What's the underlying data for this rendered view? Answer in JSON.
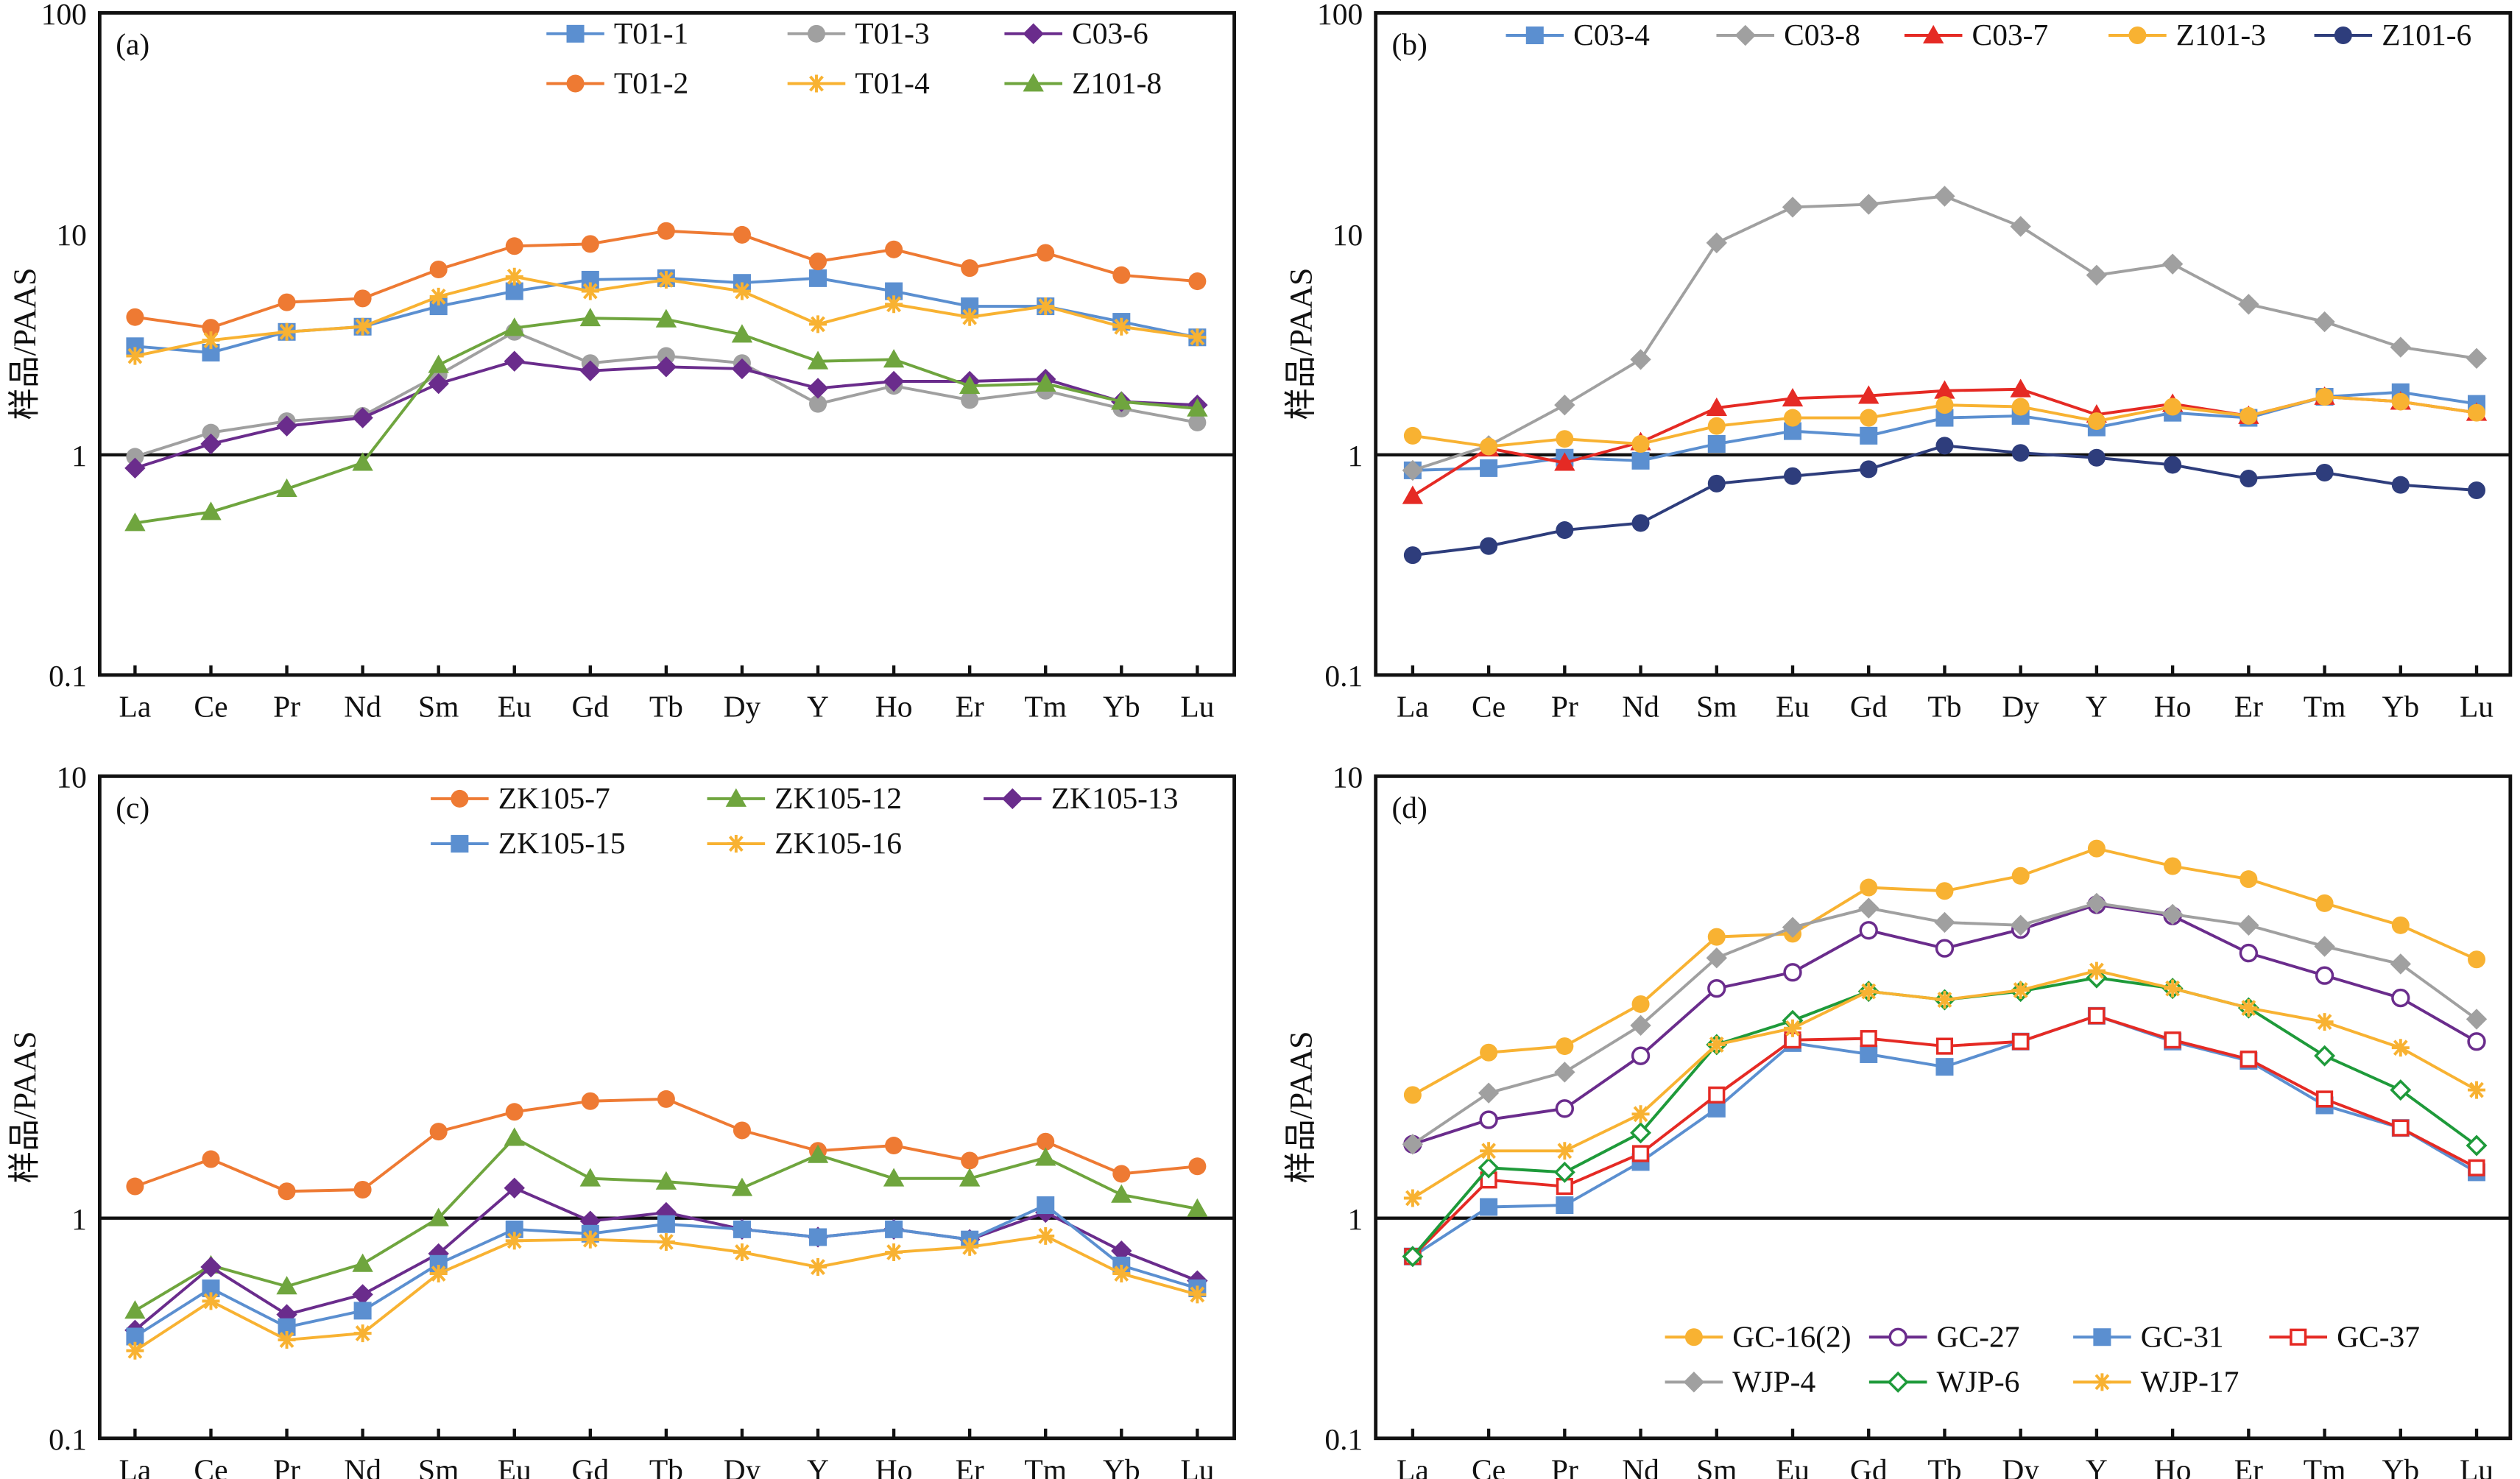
{
  "chart_data": [
    {
      "panel_label": "(a)",
      "type": "line",
      "yscale": "log",
      "ylim": [
        0.1,
        100
      ],
      "yticks": [
        "0.1",
        "1",
        "10",
        "100"
      ],
      "ylabel": "样品/PAAS",
      "reference_line": 1,
      "categories": [
        "La",
        "Ce",
        "Pr",
        "Nd",
        "Sm",
        "Eu",
        "Gd",
        "Tb",
        "Dy",
        "Y",
        "Ho",
        "Er",
        "Tm",
        "Yb",
        "Lu"
      ],
      "legend": "top-right",
      "legend_columns": 3,
      "series": [
        {
          "name": "T01-1",
          "color": "#5B8FD0",
          "marker": "square",
          "values": [
            3.1,
            2.9,
            3.6,
            3.8,
            4.7,
            5.5,
            6.2,
            6.3,
            6.0,
            6.3,
            5.5,
            4.7,
            4.7,
            4.0,
            3.4
          ]
        },
        {
          "name": "T01-3",
          "color": "#A0A0A0",
          "marker": "circle",
          "values": [
            0.98,
            1.26,
            1.42,
            1.5,
            2.3,
            3.6,
            2.6,
            2.8,
            2.6,
            1.7,
            2.05,
            1.77,
            1.95,
            1.62,
            1.4
          ]
        },
        {
          "name": "C03-6",
          "color": "#6A2C8C",
          "marker": "diamond",
          "values": [
            0.87,
            1.12,
            1.35,
            1.47,
            2.1,
            2.65,
            2.4,
            2.5,
            2.45,
            2.0,
            2.15,
            2.15,
            2.2,
            1.74,
            1.68
          ]
        },
        {
          "name": "T01-2",
          "color": "#EE7A33",
          "marker": "circle",
          "values": [
            4.2,
            3.76,
            4.9,
            5.1,
            6.9,
            8.8,
            9.0,
            10.3,
            9.9,
            7.5,
            8.5,
            7.0,
            8.2,
            6.5,
            6.1
          ]
        },
        {
          "name": "T01-4",
          "color": "#F8B232",
          "marker": "asterisk",
          "values": [
            2.8,
            3.3,
            3.6,
            3.8,
            5.2,
            6.4,
            5.5,
            6.2,
            5.5,
            3.9,
            4.8,
            4.2,
            4.7,
            3.8,
            3.4
          ]
        },
        {
          "name": "Z101-8",
          "color": "#6FA53E",
          "marker": "triangle",
          "values": [
            0.49,
            0.55,
            0.7,
            0.92,
            2.55,
            3.75,
            4.15,
            4.1,
            3.5,
            2.65,
            2.7,
            2.05,
            2.1,
            1.74,
            1.62
          ]
        }
      ]
    },
    {
      "panel_label": "(b)",
      "type": "line",
      "yscale": "log",
      "ylim": [
        0.1,
        100
      ],
      "yticks": [
        "0.1",
        "1",
        "10",
        "100"
      ],
      "ylabel": "样品/PAAS",
      "reference_line": 1,
      "categories": [
        "La",
        "Ce",
        "Pr",
        "Nd",
        "Sm",
        "Eu",
        "Gd",
        "Tb",
        "Dy",
        "Y",
        "Ho",
        "Er",
        "Tm",
        "Yb",
        "Lu"
      ],
      "legend": "top",
      "legend_columns": 5,
      "series": [
        {
          "name": "C03-4",
          "color": "#5B8FD0",
          "marker": "square",
          "values": [
            0.85,
            0.87,
            0.97,
            0.94,
            1.12,
            1.28,
            1.22,
            1.47,
            1.5,
            1.33,
            1.55,
            1.47,
            1.83,
            1.92,
            1.7
          ]
        },
        {
          "name": "C03-8",
          "color": "#A0A0A0",
          "marker": "diamond",
          "values": [
            0.85,
            1.1,
            1.68,
            2.7,
            9.1,
            13.2,
            13.6,
            14.8,
            10.8,
            6.5,
            7.3,
            4.8,
            4.0,
            3.07,
            2.73
          ]
        },
        {
          "name": "C03-7",
          "color": "#E52A24",
          "marker": "triangle",
          "values": [
            0.65,
            1.07,
            0.92,
            1.14,
            1.63,
            1.8,
            1.85,
            1.95,
            1.98,
            1.52,
            1.7,
            1.5,
            1.83,
            1.74,
            1.55
          ]
        },
        {
          "name": "Z101-3",
          "color": "#F8B232",
          "marker": "circle",
          "values": [
            1.22,
            1.09,
            1.18,
            1.12,
            1.35,
            1.47,
            1.47,
            1.68,
            1.65,
            1.42,
            1.65,
            1.5,
            1.83,
            1.74,
            1.55
          ]
        },
        {
          "name": "Z101-6",
          "color": "#2E3D7C",
          "marker": "circle",
          "values": [
            0.35,
            0.385,
            0.455,
            0.49,
            0.74,
            0.8,
            0.86,
            1.1,
            1.02,
            0.97,
            0.9,
            0.78,
            0.83,
            0.73,
            0.69
          ]
        }
      ]
    },
    {
      "panel_label": "(c)",
      "type": "line",
      "yscale": "log",
      "ylim": [
        0.1,
        10
      ],
      "yticks": [
        "0.1",
        "1",
        "10"
      ],
      "ylabel": "样品/PAAS",
      "reference_line": 1,
      "categories": [
        "La",
        "Ce",
        "Pr",
        "Nd",
        "Sm",
        "Eu",
        "Gd",
        "Tb",
        "Dy",
        "Y",
        "Ho",
        "Er",
        "Tm",
        "Yb",
        "Lu"
      ],
      "legend": "top-right",
      "legend_columns": 3,
      "series": [
        {
          "name": "ZK105-7",
          "color": "#EE7A33",
          "marker": "circle",
          "values": [
            1.18,
            1.36,
            1.15,
            1.16,
            1.57,
            1.74,
            1.84,
            1.86,
            1.58,
            1.42,
            1.46,
            1.35,
            1.49,
            1.26,
            1.31
          ]
        },
        {
          "name": "ZK105-12",
          "color": "#6FA53E",
          "marker": "triangle",
          "values": [
            0.38,
            0.61,
            0.49,
            0.62,
            1.0,
            1.52,
            1.23,
            1.21,
            1.17,
            1.39,
            1.23,
            1.23,
            1.37,
            1.13,
            1.05
          ]
        },
        {
          "name": "ZK105-13",
          "color": "#6A2C8C",
          "marker": "diamond",
          "values": [
            0.31,
            0.6,
            0.365,
            0.45,
            0.69,
            1.17,
            0.97,
            1.03,
            0.89,
            0.82,
            0.89,
            0.8,
            1.03,
            0.71,
            0.52
          ]
        },
        {
          "name": "ZK105-15",
          "color": "#5B8FD0",
          "marker": "square",
          "values": [
            0.29,
            0.48,
            0.32,
            0.38,
            0.62,
            0.89,
            0.85,
            0.94,
            0.89,
            0.82,
            0.89,
            0.8,
            1.07,
            0.61,
            0.48
          ]
        },
        {
          "name": "ZK105-16",
          "color": "#F8B232",
          "marker": "asterisk",
          "values": [
            0.25,
            0.42,
            0.28,
            0.3,
            0.56,
            0.79,
            0.8,
            0.78,
            0.7,
            0.6,
            0.7,
            0.74,
            0.83,
            0.56,
            0.45
          ]
        }
      ]
    },
    {
      "panel_label": "(d)",
      "type": "line",
      "yscale": "log",
      "ylim": [
        0.1,
        10
      ],
      "yticks": [
        "0.1",
        "1",
        "10"
      ],
      "ylabel": "样品/PAAS",
      "reference_line": 1,
      "categories": [
        "La",
        "Ce",
        "Pr",
        "Nd",
        "Sm",
        "Eu",
        "Gd",
        "Tb",
        "Dy",
        "Y",
        "Ho",
        "Er",
        "Tm",
        "Yb",
        "Lu"
      ],
      "legend": "bottom-right",
      "legend_columns": 4,
      "series": [
        {
          "name": "GC-16(2)",
          "color": "#F8B232",
          "marker": "circle",
          "values": [
            1.9,
            2.37,
            2.45,
            3.05,
            4.33,
            4.4,
            5.6,
            5.5,
            5.95,
            6.86,
            6.26,
            5.85,
            5.16,
            4.6,
            3.85
          ]
        },
        {
          "name": "GC-27",
          "color": "#6A2C8C",
          "marker": "open-circle",
          "values": [
            1.47,
            1.67,
            1.77,
            2.33,
            3.31,
            3.6,
            4.48,
            4.08,
            4.5,
            5.12,
            4.83,
            3.98,
            3.54,
            3.15,
            2.51
          ]
        },
        {
          "name": "GC-31",
          "color": "#5B8FD0",
          "marker": "square",
          "values": [
            0.67,
            1.06,
            1.07,
            1.34,
            1.77,
            2.49,
            2.35,
            2.2,
            2.51,
            2.87,
            2.51,
            2.27,
            1.8,
            1.6,
            1.27
          ]
        },
        {
          "name": "GC-37",
          "color": "#E52A24",
          "marker": "open-square",
          "values": [
            0.67,
            1.22,
            1.18,
            1.4,
            1.9,
            2.53,
            2.55,
            2.45,
            2.51,
            2.87,
            2.53,
            2.29,
            1.86,
            1.6,
            1.3
          ]
        },
        {
          "name": "WJP-4",
          "color": "#A0A0A0",
          "marker": "diamond",
          "values": [
            1.47,
            1.92,
            2.14,
            2.73,
            3.88,
            4.55,
            5.03,
            4.67,
            4.6,
            5.16,
            4.87,
            4.6,
            4.12,
            3.76,
            2.82
          ]
        },
        {
          "name": "WJP-6",
          "color": "#1E9A3A",
          "marker": "open-diamond",
          "values": [
            0.67,
            1.3,
            1.27,
            1.56,
            2.47,
            2.8,
            3.26,
            3.12,
            3.26,
            3.5,
            3.31,
            2.99,
            2.33,
            1.95,
            1.46
          ]
        },
        {
          "name": "WJP-17",
          "color": "#F8B232",
          "marker": "asterisk",
          "values": [
            1.11,
            1.42,
            1.42,
            1.72,
            2.47,
            2.69,
            3.26,
            3.12,
            3.28,
            3.63,
            3.31,
            2.99,
            2.78,
            2.43,
            1.95
          ]
        }
      ]
    }
  ]
}
